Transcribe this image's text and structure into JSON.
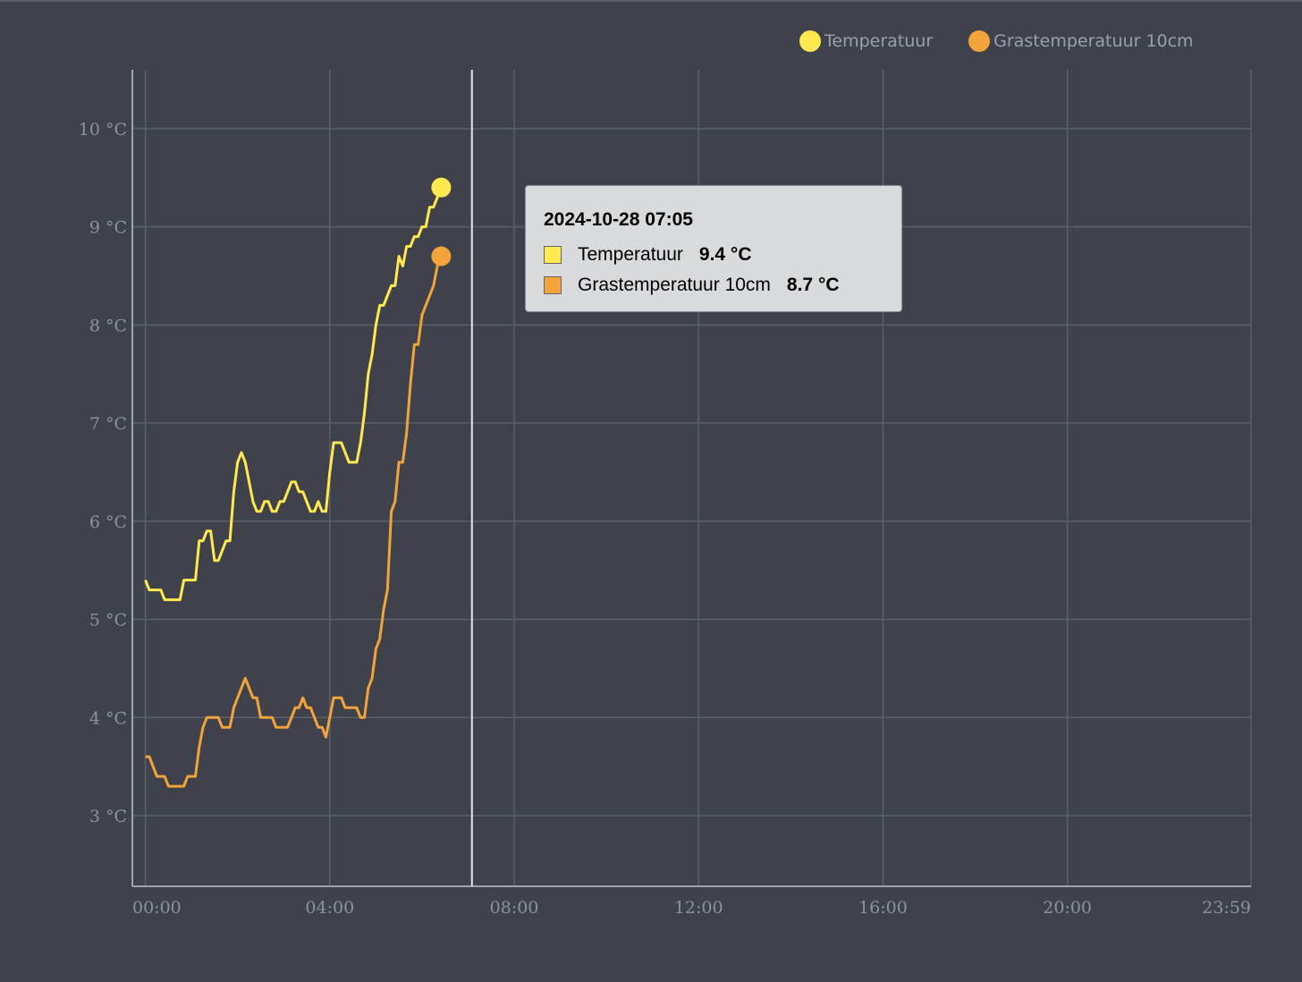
{
  "legend": {
    "items": [
      {
        "label": "Temperatuur",
        "color": "#ffe94f"
      },
      {
        "label": "Grastemperatuur 10cm",
        "color": "#f2a33a"
      }
    ]
  },
  "tooltip": {
    "title": "2024-10-28 07:05",
    "rows": [
      {
        "label": "Temperatuur",
        "value": "9.4 °C",
        "color": "#ffe94f"
      },
      {
        "label": "Grastemperatuur 10cm",
        "value": "8.7 °C",
        "color": "#f2a33a"
      }
    ]
  },
  "chart_data": {
    "type": "line",
    "x_tick_labels": [
      "00:00",
      "04:00",
      "08:00",
      "12:00",
      "16:00",
      "20:00",
      "23:59"
    ],
    "x_ticks_minutes": [
      0,
      240,
      480,
      720,
      960,
      1200,
      1439
    ],
    "xlim_minutes": [
      -17,
      1439
    ],
    "y_tick_labels": [
      "3 °C",
      "4 °C",
      "5 °C",
      "6 °C",
      "7 °C",
      "8 °C",
      "9 °C",
      "10 °C"
    ],
    "y_ticks": [
      3,
      4,
      5,
      6,
      7,
      8,
      9,
      10
    ],
    "ylim": [
      2.28,
      10.6
    ],
    "cursor_minutes": 425,
    "grid": true,
    "legend_position": "top-right",
    "series": [
      {
        "name": "Temperatuur",
        "color": "#ffe94f",
        "points": [
          [
            0,
            5.4
          ],
          [
            5,
            5.3
          ],
          [
            10,
            5.3
          ],
          [
            15,
            5.3
          ],
          [
            20,
            5.3
          ],
          [
            25,
            5.2
          ],
          [
            30,
            5.2
          ],
          [
            35,
            5.2
          ],
          [
            40,
            5.2
          ],
          [
            45,
            5.2
          ],
          [
            50,
            5.4
          ],
          [
            55,
            5.4
          ],
          [
            60,
            5.4
          ],
          [
            65,
            5.4
          ],
          [
            70,
            5.8
          ],
          [
            75,
            5.8
          ],
          [
            80,
            5.9
          ],
          [
            85,
            5.9
          ],
          [
            90,
            5.6
          ],
          [
            95,
            5.6
          ],
          [
            100,
            5.7
          ],
          [
            105,
            5.8
          ],
          [
            110,
            5.8
          ],
          [
            115,
            6.3
          ],
          [
            120,
            6.6
          ],
          [
            125,
            6.7
          ],
          [
            130,
            6.6
          ],
          [
            135,
            6.4
          ],
          [
            140,
            6.2
          ],
          [
            145,
            6.1
          ],
          [
            150,
            6.1
          ],
          [
            155,
            6.2
          ],
          [
            160,
            6.2
          ],
          [
            165,
            6.1
          ],
          [
            170,
            6.1
          ],
          [
            175,
            6.2
          ],
          [
            180,
            6.2
          ],
          [
            185,
            6.3
          ],
          [
            190,
            6.4
          ],
          [
            195,
            6.4
          ],
          [
            200,
            6.3
          ],
          [
            205,
            6.3
          ],
          [
            210,
            6.2
          ],
          [
            215,
            6.1
          ],
          [
            220,
            6.1
          ],
          [
            225,
            6.2
          ],
          [
            230,
            6.1
          ],
          [
            235,
            6.1
          ],
          [
            240,
            6.5
          ],
          [
            245,
            6.8
          ],
          [
            250,
            6.8
          ],
          [
            255,
            6.8
          ],
          [
            260,
            6.7
          ],
          [
            265,
            6.6
          ],
          [
            270,
            6.6
          ],
          [
            275,
            6.6
          ],
          [
            280,
            6.8
          ],
          [
            285,
            7.1
          ],
          [
            290,
            7.5
          ],
          [
            295,
            7.7
          ],
          [
            300,
            8.0
          ],
          [
            305,
            8.2
          ],
          [
            310,
            8.2
          ],
          [
            315,
            8.3
          ],
          [
            320,
            8.4
          ],
          [
            325,
            8.4
          ],
          [
            330,
            8.7
          ],
          [
            335,
            8.6
          ],
          [
            340,
            8.8
          ],
          [
            345,
            8.8
          ],
          [
            350,
            8.9
          ],
          [
            355,
            8.9
          ],
          [
            360,
            9.0
          ],
          [
            365,
            9.0
          ],
          [
            370,
            9.2
          ],
          [
            375,
            9.2
          ],
          [
            380,
            9.3
          ],
          [
            385,
            9.4
          ]
        ]
      },
      {
        "name": "Grastemperatuur 10cm",
        "color": "#f2a33a",
        "points": [
          [
            0,
            3.6
          ],
          [
            5,
            3.6
          ],
          [
            10,
            3.5
          ],
          [
            15,
            3.4
          ],
          [
            20,
            3.4
          ],
          [
            25,
            3.4
          ],
          [
            30,
            3.3
          ],
          [
            35,
            3.3
          ],
          [
            40,
            3.3
          ],
          [
            45,
            3.3
          ],
          [
            50,
            3.3
          ],
          [
            55,
            3.4
          ],
          [
            60,
            3.4
          ],
          [
            65,
            3.4
          ],
          [
            70,
            3.7
          ],
          [
            75,
            3.9
          ],
          [
            80,
            4.0
          ],
          [
            85,
            4.0
          ],
          [
            90,
            4.0
          ],
          [
            95,
            4.0
          ],
          [
            100,
            3.9
          ],
          [
            105,
            3.9
          ],
          [
            110,
            3.9
          ],
          [
            115,
            4.1
          ],
          [
            120,
            4.2
          ],
          [
            125,
            4.3
          ],
          [
            130,
            4.4
          ],
          [
            135,
            4.3
          ],
          [
            140,
            4.2
          ],
          [
            145,
            4.2
          ],
          [
            150,
            4.0
          ],
          [
            155,
            4.0
          ],
          [
            160,
            4.0
          ],
          [
            165,
            4.0
          ],
          [
            170,
            3.9
          ],
          [
            175,
            3.9
          ],
          [
            180,
            3.9
          ],
          [
            185,
            3.9
          ],
          [
            190,
            4.0
          ],
          [
            195,
            4.1
          ],
          [
            200,
            4.1
          ],
          [
            205,
            4.2
          ],
          [
            210,
            4.1
          ],
          [
            215,
            4.1
          ],
          [
            220,
            4.0
          ],
          [
            225,
            3.9
          ],
          [
            230,
            3.9
          ],
          [
            235,
            3.8
          ],
          [
            240,
            4.0
          ],
          [
            245,
            4.2
          ],
          [
            250,
            4.2
          ],
          [
            255,
            4.2
          ],
          [
            260,
            4.1
          ],
          [
            265,
            4.1
          ],
          [
            270,
            4.1
          ],
          [
            275,
            4.1
          ],
          [
            280,
            4.0
          ],
          [
            285,
            4.0
          ],
          [
            290,
            4.3
          ],
          [
            295,
            4.4
          ],
          [
            300,
            4.7
          ],
          [
            305,
            4.8
          ],
          [
            310,
            5.1
          ],
          [
            315,
            5.3
          ],
          [
            320,
            6.1
          ],
          [
            325,
            6.2
          ],
          [
            330,
            6.6
          ],
          [
            335,
            6.6
          ],
          [
            340,
            6.9
          ],
          [
            345,
            7.4
          ],
          [
            350,
            7.8
          ],
          [
            355,
            7.8
          ],
          [
            360,
            8.1
          ],
          [
            365,
            8.2
          ],
          [
            370,
            8.3
          ],
          [
            375,
            8.4
          ],
          [
            380,
            8.6
          ],
          [
            385,
            8.7
          ]
        ]
      }
    ]
  }
}
